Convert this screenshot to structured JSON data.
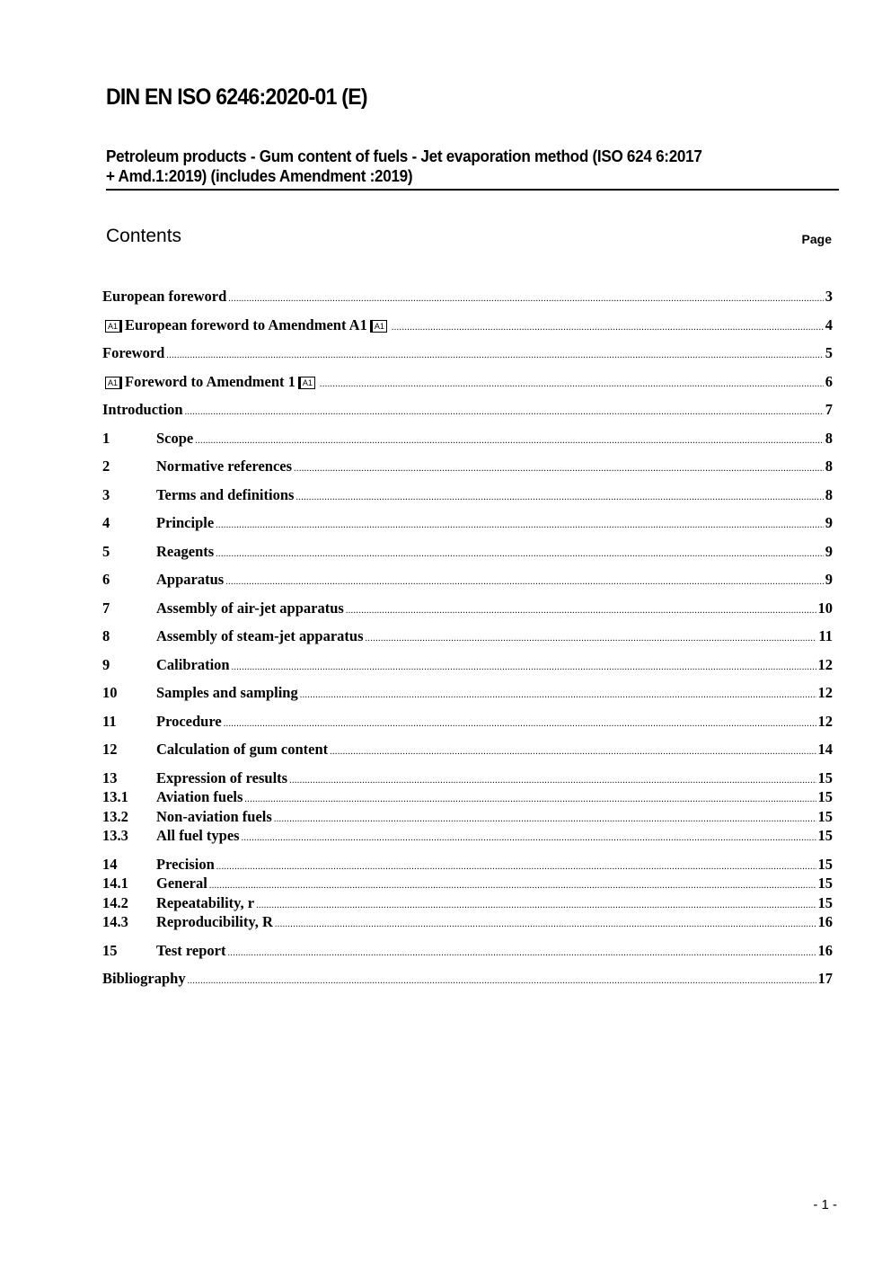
{
  "header": {
    "title": "DIN EN ISO 6246:2020-01 (E)",
    "subtitle_line1": "Petroleum products - Gum content of fuels - Jet evaporation method (ISO 624 6:2017",
    "subtitle_line2": "+ Amd.1:2019) (includes Amendment :2019)"
  },
  "contents": {
    "heading": "Contents",
    "page_label": "Page",
    "amendment_marker": "A1",
    "entries": [
      {
        "num": "",
        "text": "European foreword",
        "page": "3",
        "level": 1
      },
      {
        "num": "",
        "text": "European foreword to Amendment A1",
        "page": "4",
        "level": 1,
        "marked": true
      },
      {
        "num": "",
        "text": "Foreword",
        "page": "5",
        "level": 1
      },
      {
        "num": "",
        "text": "Foreword to Amendment 1",
        "page": "6",
        "level": 1,
        "marked": true
      },
      {
        "num": "",
        "text": "Introduction",
        "page": "7",
        "level": 1
      },
      {
        "num": "1",
        "text": "Scope",
        "page": "8",
        "level": 1
      },
      {
        "num": "2",
        "text": "Normative references",
        "page": "8",
        "level": 1
      },
      {
        "num": "3",
        "text": "Terms and definitions",
        "page": "8",
        "level": 1
      },
      {
        "num": "4",
        "text": "Principle",
        "page": "9",
        "level": 1
      },
      {
        "num": "5",
        "text": "Reagents",
        "page": "9",
        "level": 1
      },
      {
        "num": "6",
        "text": "Apparatus",
        "page": "9",
        "level": 1
      },
      {
        "num": "7",
        "text": "Assembly of air-jet apparatus",
        "page": "10",
        "level": 1
      },
      {
        "num": "8",
        "text": "Assembly of steam-jet apparatus",
        "page": "11",
        "level": 1
      },
      {
        "num": "9",
        "text": "Calibration",
        "page": "12",
        "level": 1
      },
      {
        "num": "10",
        "text": "Samples and sampling",
        "page": "12",
        "level": 1
      },
      {
        "num": "11",
        "text": "Procedure",
        "page": "12",
        "level": 1
      },
      {
        "num": "12",
        "text": "Calculation of gum content",
        "page": "14",
        "level": 1
      },
      {
        "num": "13",
        "text": "Expression of results",
        "page": "15",
        "level": 1
      },
      {
        "num": "13.1",
        "text": "Aviation fuels",
        "page": "15",
        "level": 2
      },
      {
        "num": "13.2",
        "text": "Non-aviation fuels",
        "page": "15",
        "level": 2
      },
      {
        "num": "13.3",
        "text": "All fuel types",
        "page": "15",
        "level": 2
      },
      {
        "num": "14",
        "text": "Precision",
        "page": "15",
        "level": 1
      },
      {
        "num": "14.1",
        "text": "General",
        "page": "15",
        "level": 2
      },
      {
        "num": "14.2",
        "text": "Repeatability, r",
        "page": "15",
        "level": 2
      },
      {
        "num": "14.3",
        "text": "Reproducibility, R",
        "page": "16",
        "level": 2
      },
      {
        "num": "15",
        "text": "Test report",
        "page": "16",
        "level": 1
      },
      {
        "num": "",
        "text": "Bibliography",
        "page": "17",
        "level": 1
      }
    ]
  },
  "footer": {
    "page_number": "- 1 -"
  }
}
